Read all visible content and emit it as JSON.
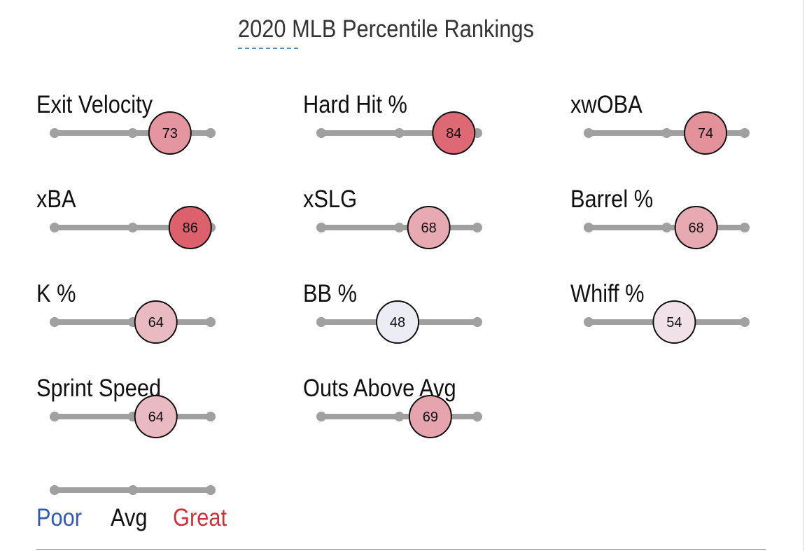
{
  "title": "2020 MLB Percentile Rankings",
  "colors": {
    "track": "#a0a0a0",
    "poor": "#325aa8",
    "avg": "#f2f2f7",
    "great": "#d21e2d",
    "circle_stroke": "#111111"
  },
  "chart_data": {
    "type": "percentile-ranking",
    "title": "2020 MLB Percentile Rankings",
    "xlim": [
      0,
      100
    ],
    "metrics": [
      {
        "label": "Exit Velocity",
        "value": 73
      },
      {
        "label": "Hard Hit %",
        "value": 84
      },
      {
        "label": "xwOBA",
        "value": 74
      },
      {
        "label": "xBA",
        "value": 86
      },
      {
        "label": "xSLG",
        "value": 68
      },
      {
        "label": "Barrel %",
        "value": 68
      },
      {
        "label": "K %",
        "value": 64
      },
      {
        "label": "BB %",
        "value": 48
      },
      {
        "label": "Whiff %",
        "value": 54
      },
      {
        "label": "Sprint Speed",
        "value": 64
      },
      {
        "label": "Outs Above Avg",
        "value": 69
      }
    ],
    "legend": {
      "poor": "Poor",
      "avg": "Avg",
      "great": "Great"
    }
  }
}
